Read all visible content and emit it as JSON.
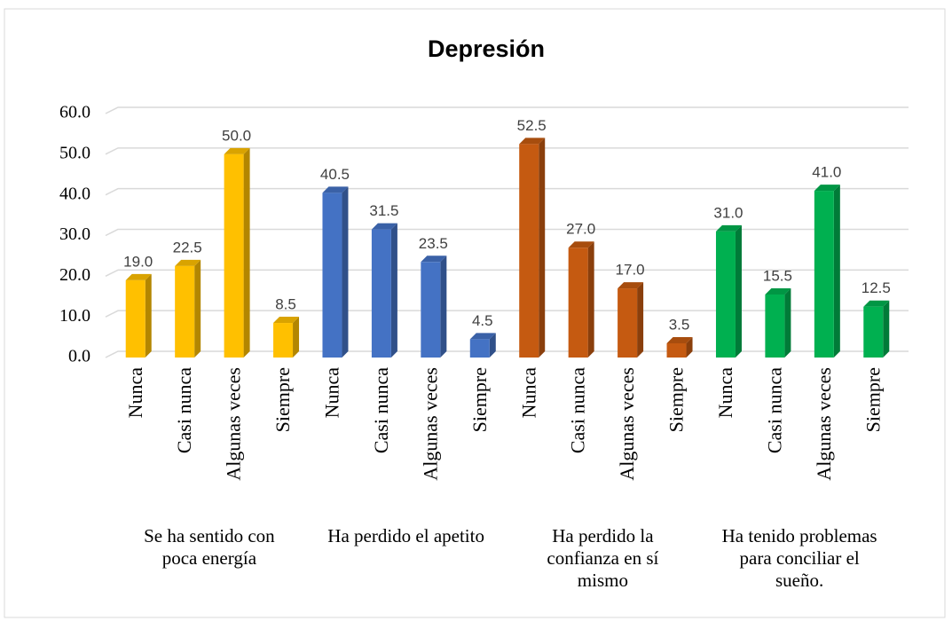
{
  "chart_data": {
    "type": "bar3d",
    "title": "Depresión",
    "groups": [
      {
        "name": "Se ha sentido con poca energía",
        "color": "#ffc000",
        "categories": [
          "Nunca",
          "Casi nunca",
          "Algunas veces",
          "Siempre"
        ],
        "values": [
          19,
          22.5,
          50,
          8.5
        ],
        "value_labels": [
          "19.0",
          "22.5",
          "50.0",
          "8.5"
        ]
      },
      {
        "name": "Ha perdido el apetito",
        "color": "#4472c4",
        "categories": [
          "Nunca",
          "Casi nunca",
          "Algunas veces",
          "Siempre"
        ],
        "values": [
          40.5,
          31.5,
          23.5,
          4.5
        ],
        "value_labels": [
          "40.5",
          "31.5",
          "23.5",
          "4.5"
        ]
      },
      {
        "name": "Ha perdido la confianza en sí mismo",
        "color": "#c55a11",
        "categories": [
          "Nunca",
          "Casi nunca",
          "Algunas veces",
          "Siempre"
        ],
        "values": [
          52.5,
          27,
          17,
          3.5
        ],
        "value_labels": [
          "52.5",
          "27.0",
          "17.0",
          "3.5"
        ]
      },
      {
        "name": "Ha tenido problemas para conciliar el sueño.",
        "color": "#00b050",
        "categories": [
          "Nunca",
          "Casi nunca",
          "Algunas veces",
          "Siempre"
        ],
        "values": [
          31,
          15.5,
          41,
          12.5
        ],
        "value_labels": [
          "31.0",
          "15.5",
          "41.0",
          "12.5"
        ]
      }
    ],
    "ylim": [
      0,
      60
    ],
    "yticks": [
      {
        "value": 0,
        "label": "0.0"
      },
      {
        "value": 10,
        "label": "10.0"
      },
      {
        "value": 20,
        "label": "20.0"
      },
      {
        "value": 30,
        "label": "30.0"
      },
      {
        "value": 40,
        "label": "40.0"
      },
      {
        "value": 50,
        "label": "50.0"
      },
      {
        "value": 60,
        "label": "60.0"
      }
    ],
    "grid": true
  }
}
